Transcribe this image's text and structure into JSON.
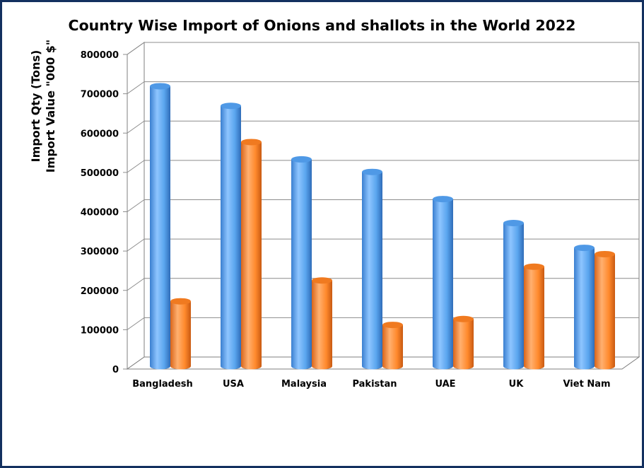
{
  "chart_data": {
    "type": "bar",
    "title": "Country Wise Import of Onions and shallots in the World 2022",
    "ylabel_line1": "Import Qty (Tons)",
    "ylabel_line2": "Import Value \"000 $\"",
    "categories": [
      "Bangladesh",
      "USA",
      "Malaysia",
      "Pakistan",
      "UAE",
      "UK",
      "Viet Nam"
    ],
    "series": [
      {
        "values": [
          712000,
          662000,
          526000,
          494000,
          425000,
          364000,
          301000
        ]
      },
      {
        "values": [
          165000,
          570000,
          218000,
          105000,
          120000,
          253000,
          285000
        ]
      }
    ],
    "yticks": [
      "0",
      "100000",
      "200000",
      "300000",
      "400000",
      "500000",
      "600000",
      "700000",
      "800000"
    ],
    "ylim": [
      0,
      800000
    ],
    "grid": true,
    "legend": "none",
    "colors": [
      "#5aa5ee",
      "#ff8a2d"
    ]
  }
}
